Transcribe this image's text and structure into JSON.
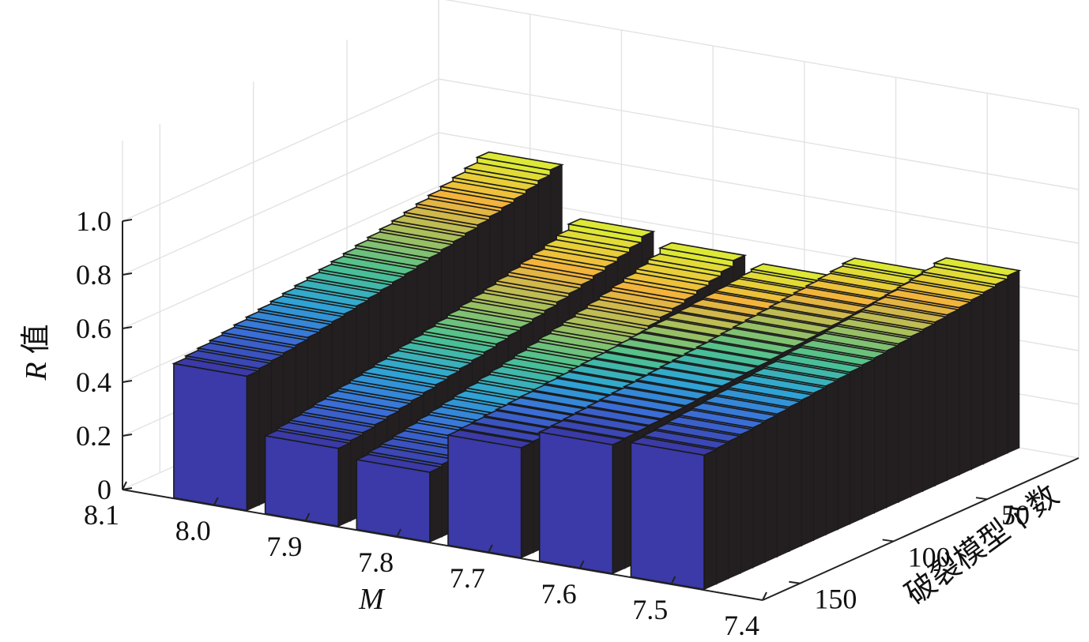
{
  "chart_data": {
    "type": "bar3d",
    "ylabel": {
      "var": "R",
      "text": "值"
    },
    "xlabel": "M",
    "zlabel": "破裂模型个数",
    "y_ticks": [
      "0",
      "0.2",
      "0.4",
      "0.6",
      "0.8",
      "1.0"
    ],
    "y_range": [
      0,
      1.0
    ],
    "m_ticks": [
      "8.1",
      "8.0",
      "7.9",
      "7.8",
      "7.7",
      "7.6",
      "7.5",
      "7.4"
    ],
    "n_ticks": [
      "50",
      "100",
      "150"
    ],
    "n_range": [
      1,
      170
    ],
    "grid": true,
    "series": [
      {
        "m": "8.0",
        "front_value": 0.5,
        "back_value": 0.76
      },
      {
        "m": "7.9",
        "front_value": 0.29,
        "back_value": 0.57
      },
      {
        "m": "7.8",
        "front_value": 0.26,
        "back_value": 0.54
      },
      {
        "m": "7.7",
        "front_value": 0.41,
        "back_value": 0.52
      },
      {
        "m": "7.6",
        "front_value": 0.48,
        "back_value": 0.6
      },
      {
        "m": "7.5",
        "front_value": 0.5,
        "back_value": 0.66
      }
    ],
    "colormap": [
      "#dde834",
      "#f3b23b",
      "#a5c05e",
      "#4cc28f",
      "#2ea6d6",
      "#3b6fd9",
      "#3b3aa8"
    ]
  }
}
